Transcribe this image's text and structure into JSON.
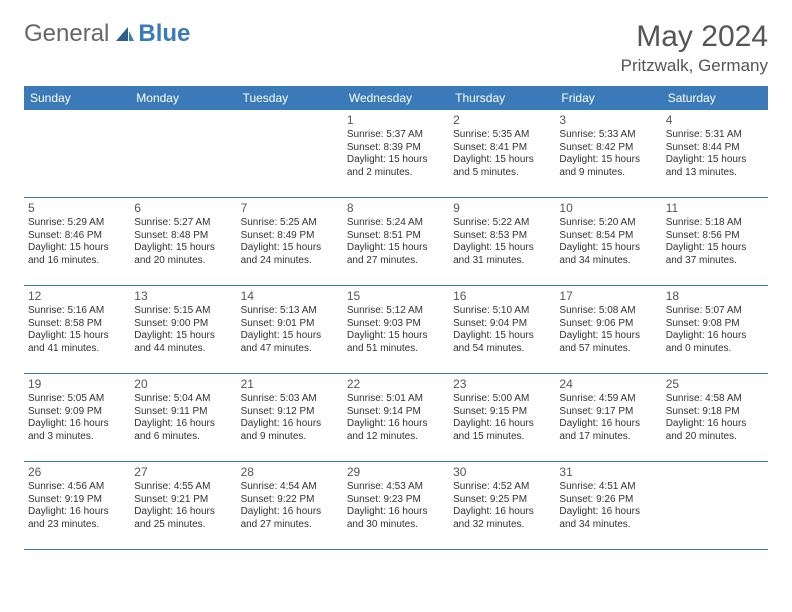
{
  "brand": {
    "part1": "General",
    "part2": "Blue"
  },
  "title": "May 2024",
  "location": "Pritzwalk, Germany",
  "colors": {
    "accent": "#3a7ab8",
    "text": "#333333",
    "muted": "#555555",
    "bg": "#ffffff"
  },
  "dayNames": [
    "Sunday",
    "Monday",
    "Tuesday",
    "Wednesday",
    "Thursday",
    "Friday",
    "Saturday"
  ],
  "weeks": [
    [
      {
        "n": "",
        "sr": "",
        "ss": "",
        "dl": ""
      },
      {
        "n": "",
        "sr": "",
        "ss": "",
        "dl": ""
      },
      {
        "n": "",
        "sr": "",
        "ss": "",
        "dl": ""
      },
      {
        "n": "1",
        "sr": "Sunrise: 5:37 AM",
        "ss": "Sunset: 8:39 PM",
        "dl": "Daylight: 15 hours and 2 minutes."
      },
      {
        "n": "2",
        "sr": "Sunrise: 5:35 AM",
        "ss": "Sunset: 8:41 PM",
        "dl": "Daylight: 15 hours and 5 minutes."
      },
      {
        "n": "3",
        "sr": "Sunrise: 5:33 AM",
        "ss": "Sunset: 8:42 PM",
        "dl": "Daylight: 15 hours and 9 minutes."
      },
      {
        "n": "4",
        "sr": "Sunrise: 5:31 AM",
        "ss": "Sunset: 8:44 PM",
        "dl": "Daylight: 15 hours and 13 minutes."
      }
    ],
    [
      {
        "n": "5",
        "sr": "Sunrise: 5:29 AM",
        "ss": "Sunset: 8:46 PM",
        "dl": "Daylight: 15 hours and 16 minutes."
      },
      {
        "n": "6",
        "sr": "Sunrise: 5:27 AM",
        "ss": "Sunset: 8:48 PM",
        "dl": "Daylight: 15 hours and 20 minutes."
      },
      {
        "n": "7",
        "sr": "Sunrise: 5:25 AM",
        "ss": "Sunset: 8:49 PM",
        "dl": "Daylight: 15 hours and 24 minutes."
      },
      {
        "n": "8",
        "sr": "Sunrise: 5:24 AM",
        "ss": "Sunset: 8:51 PM",
        "dl": "Daylight: 15 hours and 27 minutes."
      },
      {
        "n": "9",
        "sr": "Sunrise: 5:22 AM",
        "ss": "Sunset: 8:53 PM",
        "dl": "Daylight: 15 hours and 31 minutes."
      },
      {
        "n": "10",
        "sr": "Sunrise: 5:20 AM",
        "ss": "Sunset: 8:54 PM",
        "dl": "Daylight: 15 hours and 34 minutes."
      },
      {
        "n": "11",
        "sr": "Sunrise: 5:18 AM",
        "ss": "Sunset: 8:56 PM",
        "dl": "Daylight: 15 hours and 37 minutes."
      }
    ],
    [
      {
        "n": "12",
        "sr": "Sunrise: 5:16 AM",
        "ss": "Sunset: 8:58 PM",
        "dl": "Daylight: 15 hours and 41 minutes."
      },
      {
        "n": "13",
        "sr": "Sunrise: 5:15 AM",
        "ss": "Sunset: 9:00 PM",
        "dl": "Daylight: 15 hours and 44 minutes."
      },
      {
        "n": "14",
        "sr": "Sunrise: 5:13 AM",
        "ss": "Sunset: 9:01 PM",
        "dl": "Daylight: 15 hours and 47 minutes."
      },
      {
        "n": "15",
        "sr": "Sunrise: 5:12 AM",
        "ss": "Sunset: 9:03 PM",
        "dl": "Daylight: 15 hours and 51 minutes."
      },
      {
        "n": "16",
        "sr": "Sunrise: 5:10 AM",
        "ss": "Sunset: 9:04 PM",
        "dl": "Daylight: 15 hours and 54 minutes."
      },
      {
        "n": "17",
        "sr": "Sunrise: 5:08 AM",
        "ss": "Sunset: 9:06 PM",
        "dl": "Daylight: 15 hours and 57 minutes."
      },
      {
        "n": "18",
        "sr": "Sunrise: 5:07 AM",
        "ss": "Sunset: 9:08 PM",
        "dl": "Daylight: 16 hours and 0 minutes."
      }
    ],
    [
      {
        "n": "19",
        "sr": "Sunrise: 5:05 AM",
        "ss": "Sunset: 9:09 PM",
        "dl": "Daylight: 16 hours and 3 minutes."
      },
      {
        "n": "20",
        "sr": "Sunrise: 5:04 AM",
        "ss": "Sunset: 9:11 PM",
        "dl": "Daylight: 16 hours and 6 minutes."
      },
      {
        "n": "21",
        "sr": "Sunrise: 5:03 AM",
        "ss": "Sunset: 9:12 PM",
        "dl": "Daylight: 16 hours and 9 minutes."
      },
      {
        "n": "22",
        "sr": "Sunrise: 5:01 AM",
        "ss": "Sunset: 9:14 PM",
        "dl": "Daylight: 16 hours and 12 minutes."
      },
      {
        "n": "23",
        "sr": "Sunrise: 5:00 AM",
        "ss": "Sunset: 9:15 PM",
        "dl": "Daylight: 16 hours and 15 minutes."
      },
      {
        "n": "24",
        "sr": "Sunrise: 4:59 AM",
        "ss": "Sunset: 9:17 PM",
        "dl": "Daylight: 16 hours and 17 minutes."
      },
      {
        "n": "25",
        "sr": "Sunrise: 4:58 AM",
        "ss": "Sunset: 9:18 PM",
        "dl": "Daylight: 16 hours and 20 minutes."
      }
    ],
    [
      {
        "n": "26",
        "sr": "Sunrise: 4:56 AM",
        "ss": "Sunset: 9:19 PM",
        "dl": "Daylight: 16 hours and 23 minutes."
      },
      {
        "n": "27",
        "sr": "Sunrise: 4:55 AM",
        "ss": "Sunset: 9:21 PM",
        "dl": "Daylight: 16 hours and 25 minutes."
      },
      {
        "n": "28",
        "sr": "Sunrise: 4:54 AM",
        "ss": "Sunset: 9:22 PM",
        "dl": "Daylight: 16 hours and 27 minutes."
      },
      {
        "n": "29",
        "sr": "Sunrise: 4:53 AM",
        "ss": "Sunset: 9:23 PM",
        "dl": "Daylight: 16 hours and 30 minutes."
      },
      {
        "n": "30",
        "sr": "Sunrise: 4:52 AM",
        "ss": "Sunset: 9:25 PM",
        "dl": "Daylight: 16 hours and 32 minutes."
      },
      {
        "n": "31",
        "sr": "Sunrise: 4:51 AM",
        "ss": "Sunset: 9:26 PM",
        "dl": "Daylight: 16 hours and 34 minutes."
      },
      {
        "n": "",
        "sr": "",
        "ss": "",
        "dl": ""
      }
    ]
  ]
}
